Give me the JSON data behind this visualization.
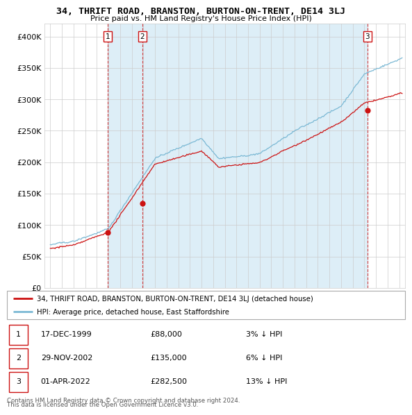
{
  "title": "34, THRIFT ROAD, BRANSTON, BURTON-ON-TRENT, DE14 3LJ",
  "subtitle": "Price paid vs. HM Land Registry's House Price Index (HPI)",
  "legend_line1": "34, THRIFT ROAD, BRANSTON, BURTON-ON-TRENT, DE14 3LJ (detached house)",
  "legend_line2": "HPI: Average price, detached house, East Staffordshire",
  "footer1": "Contains HM Land Registry data © Crown copyright and database right 2024.",
  "footer2": "This data is licensed under the Open Government Licence v3.0.",
  "sales": [
    {
      "num": 1,
      "date": "17-DEC-1999",
      "price": 88000,
      "pct": "3%",
      "dir": "↓"
    },
    {
      "num": 2,
      "date": "29-NOV-2002",
      "price": 135000,
      "pct": "6%",
      "dir": "↓"
    },
    {
      "num": 3,
      "date": "01-APR-2022",
      "price": 282500,
      "pct": "13%",
      "dir": "↓"
    }
  ],
  "sale_years": [
    1999.96,
    2002.91,
    2022.25
  ],
  "sale_prices": [
    88000,
    135000,
    282500
  ],
  "hpi_color": "#7ab8d4",
  "price_color": "#cc1111",
  "vline_color": "#cc1111",
  "shade_color": "#ddeef7",
  "background_color": "#ffffff",
  "grid_color": "#cccccc",
  "ylim": [
    0,
    420000
  ],
  "xlim_start": 1994.5,
  "xlim_end": 2025.5
}
